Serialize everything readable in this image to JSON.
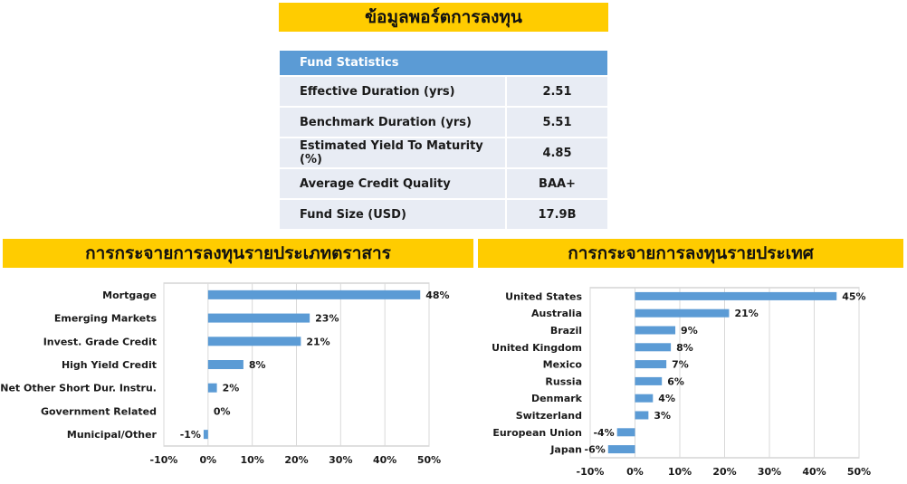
{
  "main_title": "ข้อมูลพอร์ตการลงทุน",
  "stats": {
    "header": "Fund Statistics",
    "rows": [
      {
        "label": "Effective Duration (yrs)",
        "value": "2.51"
      },
      {
        "label": "Benchmark Duration (yrs)",
        "value": "5.51"
      },
      {
        "label": "Estimated Yield To Maturity (%)",
        "value": "4.85"
      },
      {
        "label": "Average Credit Quality",
        "value": "BAA+"
      },
      {
        "label": "Fund Size (USD)",
        "value": "17.9B"
      }
    ]
  },
  "section_titles": {
    "by_type": "การกระจายการลงทุนรายประเภทตราสาร",
    "by_country": "การกระจายการลงทุนรายประเทศ"
  },
  "colors": {
    "bar": "#5b9bd5",
    "banner": "#ffcc00",
    "header": "#5b9bd5",
    "grid": "#d9d9d9"
  },
  "chart_data": [
    {
      "type": "bar",
      "orientation": "horizontal",
      "categories": [
        "Mortgage",
        "Emerging Markets",
        "Invest. Grade Credit",
        "High Yield Credit",
        "Net Other Short Dur. Instru.",
        "Government Related",
        "Municipal/Other"
      ],
      "values": [
        48,
        23,
        21,
        8,
        2,
        0,
        -1
      ],
      "data_labels": [
        "48%",
        "23%",
        "21%",
        "8%",
        "2%",
        "0%",
        "-1%"
      ],
      "xlim": [
        -10,
        50
      ],
      "x_ticks": [
        -10,
        0,
        10,
        20,
        30,
        40,
        50
      ],
      "x_tick_labels": [
        "-10%",
        "0%",
        "10%",
        "20%",
        "30%",
        "40%",
        "50%"
      ],
      "grid": true
    },
    {
      "type": "bar",
      "orientation": "horizontal",
      "categories": [
        "United States",
        "Australia",
        "Brazil",
        "United Kingdom",
        "Mexico",
        "Russia",
        "Denmark",
        "Switzerland",
        "European Union",
        "Japan"
      ],
      "values": [
        45,
        21,
        9,
        8,
        7,
        6,
        4,
        3,
        -4,
        -6
      ],
      "data_labels": [
        "45%",
        "21%",
        "9%",
        "8%",
        "7%",
        "6%",
        "4%",
        "3%",
        "-4%",
        "-6%"
      ],
      "xlim": [
        -10,
        50
      ],
      "x_ticks": [
        -10,
        0,
        10,
        20,
        30,
        40,
        50
      ],
      "x_tick_labels": [
        "-10%",
        "0%",
        "10%",
        "20%",
        "30%",
        "40%",
        "50%"
      ],
      "grid": true
    }
  ]
}
